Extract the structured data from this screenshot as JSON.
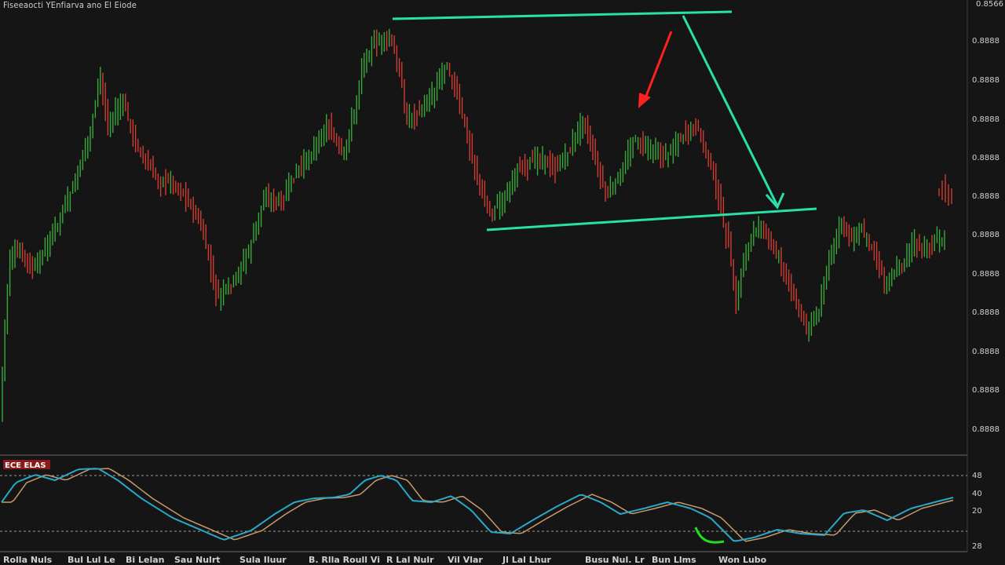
{
  "chart": {
    "title": "Fiseeaocti YEnfiarva ano El Eiode",
    "top_right_label": "0.8566",
    "price_ticks": [
      "0.8888",
      "0.8888",
      "0.8888",
      "0.8888",
      "0.8888",
      "0.8888",
      "0.8888",
      "0.8888",
      "0.8888",
      "0.8888",
      "0.8888"
    ],
    "oscillator": {
      "name": "ECE ELAS",
      "levels": [
        "48",
        "40",
        "20",
        "28"
      ]
    },
    "x_labels": [
      "Rolla Nuls",
      "Bul Lul Le",
      "Bi Lelan",
      "Sau Nulrt",
      "Sula Iluur",
      "B. Rlla Roull Vi",
      "R Lal Nulr",
      "Vil Vlar",
      "Jl Lal Lhur",
      "Busu Nul. Lr",
      "Bun Llms",
      "Won Lubo"
    ]
  },
  "colors": {
    "up": "#3aa83a",
    "down": "#d23c32",
    "channel": "#29e0a8",
    "arrow_red": "#ff2020",
    "osc_main": "#2aa8c8",
    "osc_signal": "#c89a6a",
    "annotation_green": "#22dd22"
  },
  "chart_data": {
    "type": "candlestick",
    "panels": [
      "price",
      "oscillator"
    ],
    "annotations": [
      "upper channel line",
      "lower channel line",
      "red down arrow",
      "teal arrow to breakout"
    ]
  }
}
